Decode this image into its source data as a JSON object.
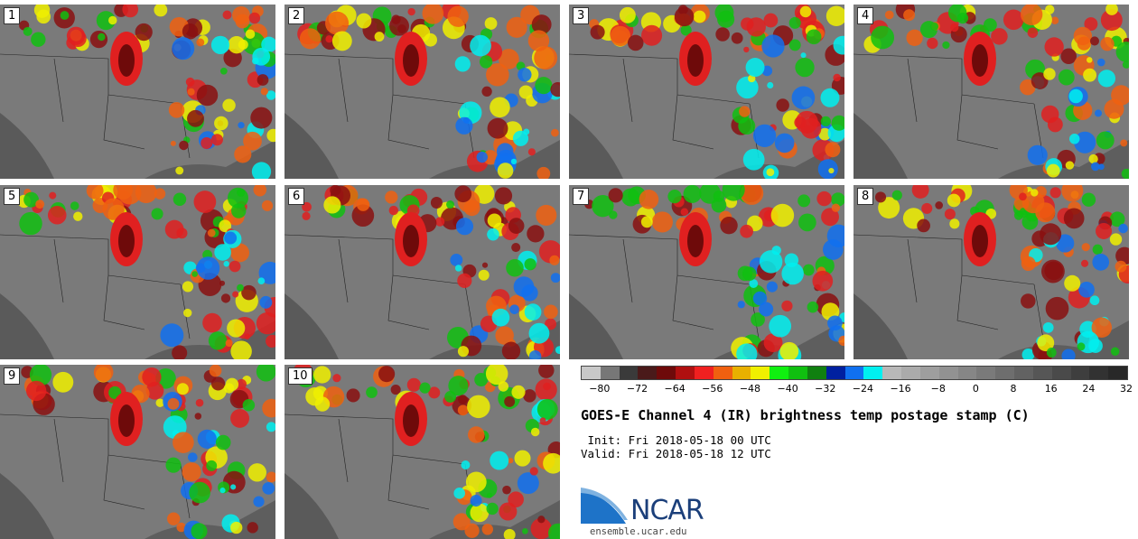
{
  "stamps": [
    {
      "label": "1"
    },
    {
      "label": "2"
    },
    {
      "label": "3"
    },
    {
      "label": "4"
    },
    {
      "label": "5"
    },
    {
      "label": "6"
    },
    {
      "label": "7"
    },
    {
      "label": "8"
    },
    {
      "label": "9"
    },
    {
      "label": "10"
    }
  ],
  "colorbar": {
    "colors": [
      "#c8c8c8",
      "#777777",
      "#3a3a3a",
      "#4a1a1a",
      "#6e0a0a",
      "#b01010",
      "#f02020",
      "#f06010",
      "#e8b000",
      "#f0f000",
      "#10f010",
      "#10c010",
      "#108010",
      "#0020a0",
      "#1070f0",
      "#00f0f0",
      "#b8b8b8",
      "#ababab",
      "#9e9e9e",
      "#929292",
      "#868686",
      "#7a7a7a",
      "#6e6e6e",
      "#626262",
      "#565656",
      "#4a4a4a",
      "#3e3e3e",
      "#323232",
      "#282828"
    ],
    "ticks": [
      "−80",
      "−72",
      "−64",
      "−56",
      "−48",
      "−40",
      "−32",
      "−24",
      "−16",
      "−8",
      "0",
      "8",
      "16",
      "24",
      "32"
    ]
  },
  "title": "GOES-E Channel 4 (IR) brightness temp postage stamp (C)",
  "init_line": " Init: Fri 2018-05-18 00 UTC",
  "valid_line": "Valid: Fri 2018-05-18 12 UTC",
  "logo": {
    "text": "NCAR",
    "website": "ensemble.ucar.edu"
  }
}
